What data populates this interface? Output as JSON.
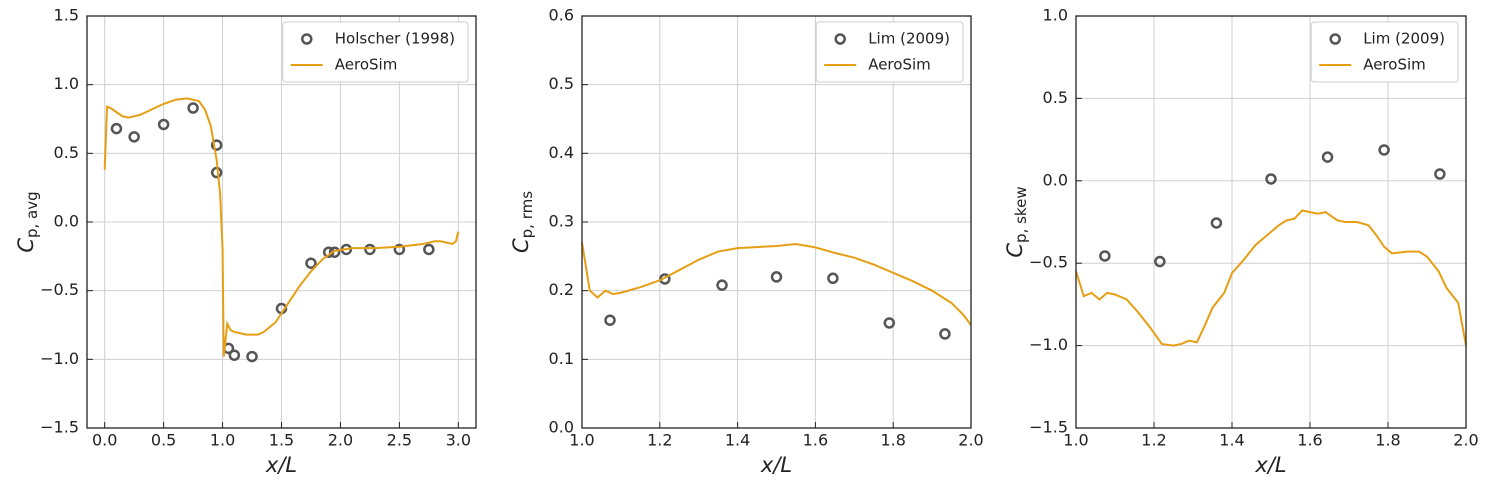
{
  "chart_data": [
    {
      "type": "line",
      "xlabel": "x/L",
      "ylabel": "C",
      "ylabel_sub": "p, avg",
      "xlim": [
        -0.15,
        3.15
      ],
      "ylim": [
        -1.5,
        1.5
      ],
      "xticks": [
        {
          "value": 0,
          "label": "0.0"
        },
        0.5,
        {
          "value": 1,
          "label": "1.0"
        },
        1.5,
        {
          "value": 2,
          "label": "2.0"
        },
        2.5,
        {
          "value": 3,
          "label": "3.0"
        }
      ],
      "yticks": [
        {
          "value": -1.5,
          "label": "−1.5"
        },
        {
          "value": -1,
          "label": "−1.0"
        },
        {
          "value": -0.5,
          "label": "−0.5"
        },
        {
          "value": 0,
          "label": "0.0"
        },
        0.5,
        {
          "value": 1,
          "label": "1.0"
        },
        1.5
      ],
      "grid": true,
      "legend": "upper-right",
      "series": [
        {
          "name": "Holscher (1998)",
          "style": "marker",
          "color": "#555555",
          "x": [
            0.1,
            0.25,
            0.5,
            0.75,
            0.95,
            0.95,
            1.05,
            1.1,
            1.25,
            1.5,
            1.75,
            1.9,
            1.95,
            2.05,
            2.25,
            2.5,
            2.75
          ],
          "values": [
            0.68,
            0.62,
            0.71,
            0.83,
            0.56,
            0.36,
            -0.92,
            -0.97,
            -0.98,
            -0.63,
            -0.3,
            -0.22,
            -0.22,
            -0.2,
            -0.2,
            -0.2,
            -0.2
          ]
        },
        {
          "name": "AeroSim",
          "style": "line",
          "color": "#e69f14",
          "x": [
            0,
            0.02,
            0.05,
            0.1,
            0.15,
            0.2,
            0.3,
            0.4,
            0.5,
            0.6,
            0.7,
            0.8,
            0.85,
            0.9,
            0.95,
            0.98,
            1.0,
            1.01,
            1.04,
            1.07,
            1.1,
            1.15,
            1.2,
            1.3,
            1.35,
            1.45,
            1.55,
            1.65,
            1.75,
            1.85,
            1.95,
            2.1,
            2.3,
            2.5,
            2.7,
            2.8,
            2.85,
            2.9,
            2.95,
            2.98,
            3.0
          ],
          "values": [
            0.38,
            0.84,
            0.83,
            0.8,
            0.77,
            0.76,
            0.78,
            0.82,
            0.86,
            0.89,
            0.9,
            0.88,
            0.82,
            0.7,
            0.45,
            0.2,
            -0.2,
            -0.98,
            -0.74,
            -0.79,
            -0.8,
            -0.81,
            -0.82,
            -0.82,
            -0.8,
            -0.73,
            -0.6,
            -0.47,
            -0.36,
            -0.27,
            -0.21,
            -0.19,
            -0.19,
            -0.18,
            -0.16,
            -0.14,
            -0.14,
            -0.15,
            -0.16,
            -0.14,
            -0.07
          ]
        }
      ]
    },
    {
      "type": "line",
      "xlabel": "x/L",
      "ylabel": "C",
      "ylabel_sub": "p, rms",
      "xlim": [
        1,
        2
      ],
      "ylim": [
        0,
        0.6
      ],
      "xticks": [
        {
          "value": 1,
          "label": "1.0"
        },
        1.2,
        1.4,
        1.6,
        1.8,
        {
          "value": 2,
          "label": "2.0"
        }
      ],
      "yticks": [
        {
          "value": 0,
          "label": "0.0"
        },
        0.1,
        0.2,
        0.3,
        0.4,
        0.5,
        0.6
      ],
      "grid": true,
      "legend": "upper-right",
      "series": [
        {
          "name": "Lim (2009)",
          "style": "marker",
          "color": "#555555",
          "x": [
            1.072,
            1.213,
            1.36,
            1.5,
            1.645,
            1.79,
            1.933
          ],
          "values": [
            0.157,
            0.217,
            0.208,
            0.22,
            0.218,
            0.153,
            0.137
          ]
        },
        {
          "name": "AeroSim",
          "style": "line",
          "color": "#e69f14",
          "x": [
            1.0,
            1.02,
            1.04,
            1.06,
            1.08,
            1.1,
            1.15,
            1.2,
            1.25,
            1.3,
            1.35,
            1.4,
            1.5,
            1.55,
            1.6,
            1.65,
            1.7,
            1.75,
            1.8,
            1.85,
            1.9,
            1.95,
            1.98,
            2.0
          ],
          "values": [
            0.27,
            0.2,
            0.19,
            0.2,
            0.195,
            0.197,
            0.205,
            0.215,
            0.23,
            0.245,
            0.257,
            0.262,
            0.265,
            0.268,
            0.263,
            0.255,
            0.248,
            0.238,
            0.226,
            0.214,
            0.2,
            0.182,
            0.165,
            0.15
          ]
        }
      ]
    },
    {
      "type": "line",
      "xlabel": "x/L",
      "ylabel": "C",
      "ylabel_sub": "p, skew",
      "xlim": [
        1,
        2
      ],
      "ylim": [
        -1.5,
        1
      ],
      "xticks": [
        {
          "value": 1,
          "label": "1.0"
        },
        1.2,
        1.4,
        1.6,
        1.8,
        {
          "value": 2,
          "label": "2.0"
        }
      ],
      "yticks": [
        {
          "value": -1.5,
          "label": "−1.5"
        },
        {
          "value": -1,
          "label": "−1.0"
        },
        {
          "value": -0.5,
          "label": "−0.5"
        },
        {
          "value": 0,
          "label": "0.0"
        },
        0.5,
        {
          "value": 1,
          "label": "1.0"
        }
      ],
      "grid": true,
      "legend": "upper-right",
      "series": [
        {
          "name": "Lim (2009)",
          "style": "marker",
          "color": "#555555",
          "x": [
            1.074,
            1.215,
            1.36,
            1.5,
            1.645,
            1.79,
            1.933
          ],
          "values": [
            -0.456,
            -0.49,
            -0.256,
            0.011,
            0.144,
            0.187,
            0.041
          ]
        },
        {
          "name": "AeroSim",
          "style": "line",
          "color": "#e69f14",
          "x": [
            1.0,
            1.02,
            1.04,
            1.06,
            1.08,
            1.1,
            1.13,
            1.16,
            1.19,
            1.22,
            1.25,
            1.27,
            1.29,
            1.31,
            1.33,
            1.35,
            1.38,
            1.4,
            1.43,
            1.46,
            1.5,
            1.52,
            1.54,
            1.56,
            1.58,
            1.6,
            1.62,
            1.64,
            1.67,
            1.69,
            1.72,
            1.75,
            1.77,
            1.79,
            1.81,
            1.85,
            1.88,
            1.9,
            1.93,
            1.95,
            1.98,
            2.0
          ],
          "values": [
            -0.55,
            -0.7,
            -0.68,
            -0.72,
            -0.68,
            -0.69,
            -0.72,
            -0.8,
            -0.89,
            -0.99,
            -1.0,
            -0.99,
            -0.97,
            -0.98,
            -0.88,
            -0.77,
            -0.68,
            -0.56,
            -0.48,
            -0.39,
            -0.31,
            -0.27,
            -0.24,
            -0.23,
            -0.18,
            -0.19,
            -0.2,
            -0.19,
            -0.24,
            -0.25,
            -0.25,
            -0.27,
            -0.33,
            -0.4,
            -0.44,
            -0.43,
            -0.43,
            -0.46,
            -0.55,
            -0.65,
            -0.74,
            -1.0
          ]
        }
      ]
    }
  ]
}
